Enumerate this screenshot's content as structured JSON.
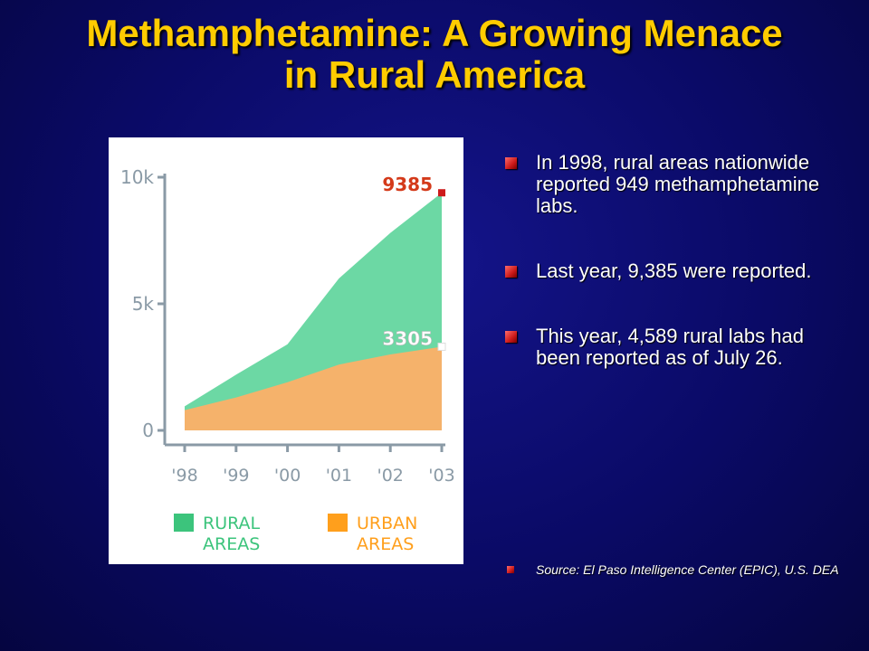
{
  "title": {
    "line1": "Methamphetamine: A Growing Menace",
    "line2": "in Rural America"
  },
  "bullets": [
    "In 1998, rural areas nationwide reported 949 methamphetamine labs.",
    "Last year, 9,385 were reported.",
    "This year, 4,589 rural labs had been reported as of July 26."
  ],
  "source": "Source: El Paso Intelligence Center (EPIC), U.S. DEA",
  "colors": {
    "title": "#ffcc00",
    "rural": "#5cd49a",
    "urban": "#f5b26b",
    "rural_legend": "#3cc47c",
    "urban_legend": "#ff9f1c",
    "rural_label": "#d43a1a",
    "urban_label": "#ffffff",
    "axis": "#8a9aa6"
  },
  "chart_data": {
    "type": "area",
    "x": [
      "'98",
      "'99",
      "'00",
      "'01",
      "'02",
      "'03"
    ],
    "ylim": [
      0,
      10000
    ],
    "yticks": [
      "0",
      "5k",
      "10k"
    ],
    "ytick_values": [
      0,
      5000,
      10000
    ],
    "grid": false,
    "legend_position": "bottom",
    "series": [
      {
        "name": "RURAL AREAS",
        "values": [
          949,
          2200,
          3400,
          6000,
          7800,
          9385
        ],
        "end_label": "9385"
      },
      {
        "name": "URBAN AREAS",
        "values": [
          800,
          1300,
          1900,
          2600,
          3000,
          3305
        ],
        "end_label": "3305"
      }
    ],
    "legend": [
      {
        "line1": "RURAL",
        "line2": "AREAS"
      },
      {
        "line1": "URBAN",
        "line2": "AREAS"
      }
    ]
  }
}
